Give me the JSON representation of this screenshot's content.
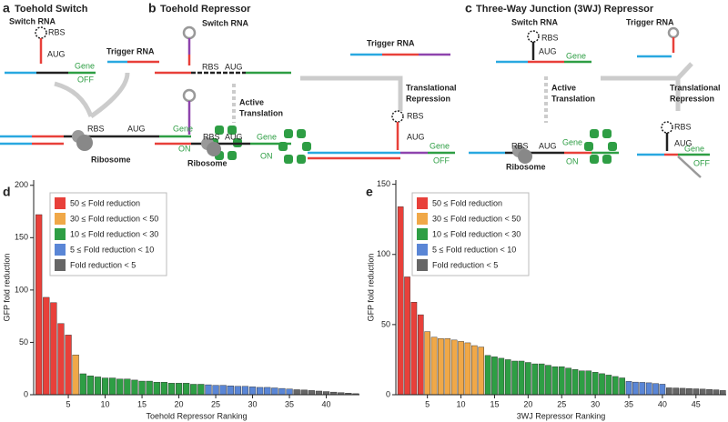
{
  "diagram": {
    "labels": [
      "a",
      "Toehold Switch",
      "Switch RNA",
      "RBS",
      "AUG",
      "Trigger RNA",
      "Gene",
      "OFF",
      "Gene",
      "ON",
      "Ribosome",
      "RBS",
      "AUG",
      "b",
      "Toehold Repressor",
      "Switch RNA",
      "RBS",
      "AUG",
      "Trigger RNA",
      "Active",
      "Translation",
      "Translational",
      "Repression",
      "RBS",
      "AUG",
      "Gene",
      "ON",
      "Ribosome",
      "RBS",
      "AUG",
      "Gene",
      "OFF",
      "c",
      "Three-Way Junction (3WJ) Repressor",
      "Switch RNA",
      "Trigger RNA",
      "RBS",
      "AUG",
      "Gene",
      "Active",
      "Translation",
      "Translational",
      "Repression",
      "RBS",
      "AUG",
      "Gene",
      "ON",
      "Ribosome",
      "RBS",
      "AUG",
      "Gene",
      "OFF"
    ]
  },
  "chart_data": [
    {
      "type": "bar",
      "panel": "d",
      "xlabel": "Toehold Repressor Ranking",
      "ylabel": "GFP fold reduction",
      "xlim": [
        0.3,
        44.5
      ],
      "ylim": [
        0,
        205
      ],
      "xticks": [
        5,
        10,
        15,
        20,
        25,
        30,
        35,
        40
      ],
      "yticks": [
        0,
        50,
        100,
        150,
        200
      ],
      "legend": "upper left",
      "series": [
        {
          "name": "50 ≤ Fold reduction",
          "color": "#e8403a",
          "x": [
            1,
            2,
            3,
            4,
            5
          ],
          "values": [
            172,
            93,
            88,
            68,
            57
          ]
        },
        {
          "name": "30 ≤ Fold reduction < 50",
          "color": "#f0a848",
          "x": [
            6
          ],
          "values": [
            38
          ]
        },
        {
          "name": "10 ≤ Fold reduction < 30",
          "color": "#2e9e44",
          "x": [
            7,
            8,
            9,
            10,
            11,
            12,
            13,
            14,
            15,
            16,
            17,
            18,
            19,
            20,
            21,
            22,
            23
          ],
          "values": [
            20,
            18,
            17,
            16,
            16,
            15,
            15,
            14,
            13,
            13,
            12,
            12,
            11,
            11,
            11,
            10,
            10
          ]
        },
        {
          "name": "5 ≤ Fold reduction < 10",
          "color": "#5a86d6",
          "x": [
            24,
            25,
            26,
            27,
            28,
            29,
            30,
            31,
            32,
            33,
            34,
            35
          ],
          "values": [
            9.5,
            9,
            9,
            8.5,
            8,
            8,
            7.5,
            7,
            7,
            6.5,
            6,
            5.5
          ]
        },
        {
          "name": "Fold reduction < 5",
          "color": "#666666",
          "x": [
            36,
            37,
            38,
            39,
            40,
            41,
            42,
            43,
            44
          ],
          "values": [
            4.8,
            4.5,
            4,
            3.5,
            3,
            2.5,
            2,
            1.5,
            1
          ]
        }
      ]
    },
    {
      "type": "bar",
      "panel": "e",
      "xlabel": "3WJ Repressor Ranking",
      "ylabel": "GFP fold reduction",
      "xlim": [
        0.3,
        49.5
      ],
      "ylim": [
        0,
        153
      ],
      "xticks": [
        5,
        10,
        15,
        20,
        25,
        30,
        35,
        40,
        45
      ],
      "yticks": [
        0,
        50,
        100,
        150
      ],
      "legend": "upper left",
      "series": [
        {
          "name": "50 ≤ Fold reduction",
          "color": "#e8403a",
          "x": [
            1,
            2,
            3,
            4
          ],
          "values": [
            134,
            84,
            66,
            57
          ]
        },
        {
          "name": "30 ≤ Fold reduction < 50",
          "color": "#f0a848",
          "x": [
            5,
            6,
            7,
            8,
            9,
            10,
            11,
            12,
            13
          ],
          "values": [
            45,
            41,
            40,
            40,
            39,
            38,
            37,
            35,
            34
          ]
        },
        {
          "name": "10 ≤ Fold reduction < 30",
          "color": "#2e9e44",
          "x": [
            14,
            15,
            16,
            17,
            18,
            19,
            20,
            21,
            22,
            23,
            24,
            25,
            26,
            27,
            28,
            29,
            30,
            31,
            32,
            33,
            34
          ],
          "values": [
            28,
            27,
            26,
            25,
            24,
            24,
            23,
            22,
            22,
            21,
            20,
            20,
            19,
            18,
            17,
            17,
            16,
            15,
            14,
            13,
            12
          ]
        },
        {
          "name": "5 ≤ Fold reduction < 10",
          "color": "#5a86d6",
          "x": [
            35,
            36,
            37,
            38,
            39,
            40
          ],
          "values": [
            9.5,
            9,
            8.8,
            8.5,
            8,
            7.5
          ]
        },
        {
          "name": "Fold reduction < 5",
          "color": "#666666",
          "x": [
            41,
            42,
            43,
            44,
            45,
            46,
            47,
            48,
            49
          ],
          "values": [
            4.9,
            4.8,
            4.6,
            4.4,
            4.2,
            4,
            3.8,
            3.5,
            3
          ]
        }
      ]
    }
  ]
}
